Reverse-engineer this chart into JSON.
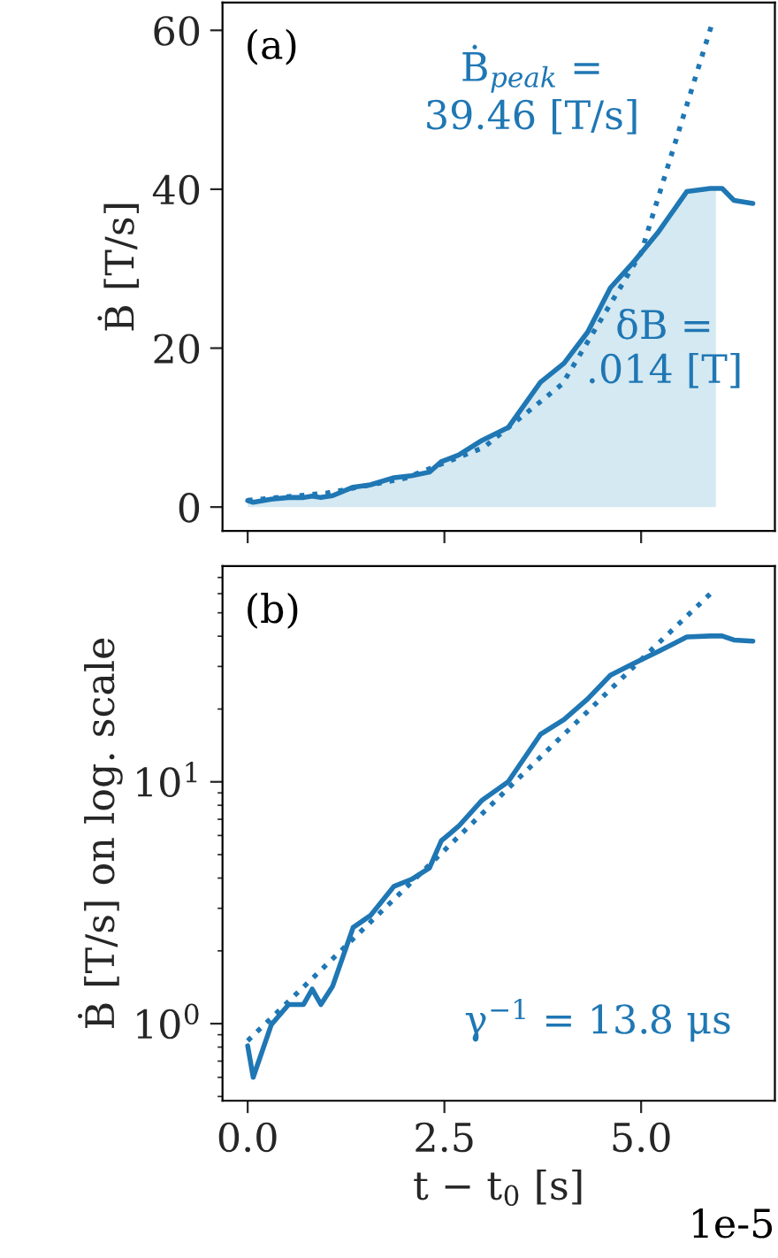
{
  "chart_data": [
    {
      "type": "line",
      "ylabel": "Ḃ [T/s]",
      "annotations": [
        "(a)",
        "Ḃ$_{peak}$ =\n39.46 [T/s]",
        "δB =\n.014 [T]"
      ],
      "xlim": [
        -0.32,
        6.7
      ],
      "ylim": [
        -3,
        63.5
      ],
      "xticks": [
        0,
        2.5,
        5
      ],
      "yticks": [
        0,
        20,
        40,
        60
      ],
      "tick_labels": "y",
      "grid": false,
      "legend": false,
      "series": [
        {
          "type": "area",
          "color": "#d4e9f2",
          "x": [
            0,
            0.07,
            0.3,
            0.52,
            0.71,
            0.82,
            0.93,
            1.08,
            1.34,
            1.56,
            1.86,
            2.08,
            2.31,
            2.46,
            2.68,
            2.98,
            3.31,
            3.72,
            4.02,
            4.32,
            4.61,
            4.91,
            5.21,
            5.58,
            5.88,
            5.95
          ],
          "values": [
            0.81,
            0.6,
            0.99,
            1.2,
            1.2,
            1.39,
            1.2,
            1.43,
            2.5,
            2.8,
            3.7,
            3.95,
            4.4,
            5.7,
            6.55,
            8.4,
            10.0,
            15.7,
            18.1,
            22.0,
            27.6,
            30.9,
            34.5,
            39.7,
            40.1,
            40.1
          ]
        },
        {
          "color": "#1f77b4",
          "line_style": "solid",
          "x": [
            0,
            0.07,
            0.3,
            0.52,
            0.71,
            0.82,
            0.93,
            1.08,
            1.34,
            1.56,
            1.86,
            2.08,
            2.31,
            2.46,
            2.68,
            2.98,
            3.31,
            3.72,
            4.02,
            4.32,
            4.61,
            4.91,
            5.21,
            5.58,
            5.88,
            6.03,
            6.18,
            6.42
          ],
          "values": [
            0.81,
            0.6,
            0.99,
            1.2,
            1.2,
            1.39,
            1.2,
            1.43,
            2.5,
            2.8,
            3.7,
            3.95,
            4.4,
            5.7,
            6.55,
            8.4,
            10.0,
            15.7,
            18.1,
            22.0,
            27.6,
            30.9,
            34.5,
            39.7,
            40.1,
            40.1,
            38.6,
            38.2
          ]
        },
        {
          "color": "#1f77b4",
          "line_style": "dotted",
          "x": [
            0,
            1,
            2,
            3,
            4,
            5,
            5.9
          ],
          "values": [
            0.85,
            1.75,
            3.62,
            7.5,
            15.5,
            32.0,
            60.8
          ]
        }
      ]
    },
    {
      "type": "line",
      "ylabel": "Ḃ [T/s] on log. scale",
      "xlabel": "t − t$_{0}$ [s]",
      "annotations": [
        "(b)",
        "γ$^{−1}$ = 13.8 μs",
        "1e-5"
      ],
      "log": "y",
      "xlim": [
        -0.32,
        6.7
      ],
      "ylim": [
        0.48,
        78
      ],
      "xticks": [
        {
          "value": 0,
          "label": "0.0"
        },
        2.5,
        {
          "value": 5,
          "label": "5.0"
        }
      ],
      "yticks": [
        {
          "value": 1,
          "label": "10$^{0}$"
        },
        {
          "value": 10,
          "label": "10$^{1}$"
        }
      ],
      "grid": false,
      "legend": false,
      "series": [
        {
          "color": "#1f77b4",
          "line_style": "solid",
          "x": [
            0,
            0.07,
            0.3,
            0.52,
            0.71,
            0.82,
            0.93,
            1.08,
            1.34,
            1.56,
            1.86,
            2.08,
            2.31,
            2.46,
            2.68,
            2.98,
            3.31,
            3.72,
            4.02,
            4.32,
            4.61,
            4.91,
            5.21,
            5.58,
            5.88,
            6.03,
            6.18,
            6.42
          ],
          "values": [
            0.81,
            0.6,
            0.99,
            1.2,
            1.2,
            1.39,
            1.2,
            1.43,
            2.5,
            2.8,
            3.7,
            3.95,
            4.4,
            5.7,
            6.55,
            8.4,
            10.0,
            15.7,
            18.1,
            22.0,
            27.6,
            30.9,
            34.5,
            39.7,
            40.1,
            40.1,
            38.6,
            38.2
          ]
        },
        {
          "color": "#1f77b4",
          "line_style": "dotted",
          "x": [
            0,
            1,
            2,
            3,
            4,
            5,
            5.9
          ],
          "values": [
            0.85,
            1.75,
            3.62,
            7.5,
            15.5,
            32.0,
            60.8
          ]
        }
      ]
    }
  ]
}
